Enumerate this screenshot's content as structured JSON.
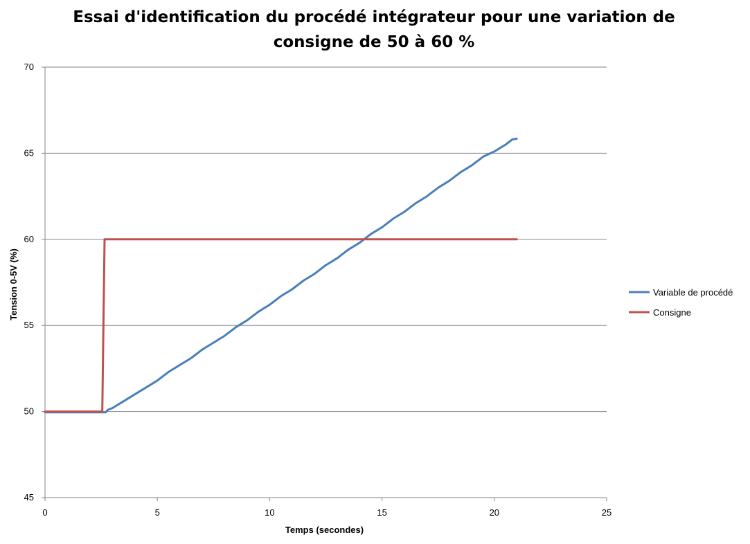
{
  "chart_data": {
    "type": "line",
    "title_lines": [
      "Essai d'identification du procédé intégrateur pour une variation de",
      "consigne de 50 à 60 %"
    ],
    "xlabel": "Temps (secondes)",
    "ylabel": "Tension 0-5V (%)",
    "xlim": [
      0,
      25
    ],
    "ylim": [
      45,
      70
    ],
    "x_ticks": [
      "0",
      "5",
      "10",
      "15",
      "20",
      "25"
    ],
    "y_ticks": [
      "45",
      "50",
      "55",
      "60",
      "65",
      "70"
    ],
    "grid": "horizontal",
    "legend_position": "right",
    "series": [
      {
        "name": "Variable de procédé",
        "color": "#4a7ebb",
        "x": [
          0,
          0.5,
          1.0,
          1.5,
          2.0,
          2.5,
          2.7,
          2.8,
          3.0,
          3.5,
          4.0,
          4.5,
          5.0,
          5.5,
          6.0,
          6.5,
          7.0,
          7.5,
          8.0,
          8.5,
          9.0,
          9.5,
          10.0,
          10.5,
          11.0,
          11.5,
          12.0,
          12.5,
          13.0,
          13.5,
          14.0,
          14.5,
          15.0,
          15.5,
          16.0,
          16.5,
          17.0,
          17.5,
          18.0,
          18.5,
          19.0,
          19.5,
          20.0,
          20.5,
          20.8,
          21.0
        ],
        "y": [
          49.95,
          49.95,
          49.95,
          49.95,
          49.95,
          49.95,
          49.95,
          50.1,
          50.2,
          50.6,
          51.0,
          51.4,
          51.8,
          52.3,
          52.7,
          53.1,
          53.6,
          54.0,
          54.4,
          54.9,
          55.3,
          55.8,
          56.2,
          56.7,
          57.1,
          57.6,
          58.0,
          58.5,
          58.9,
          59.4,
          59.8,
          60.3,
          60.7,
          61.2,
          61.6,
          62.1,
          62.5,
          63.0,
          63.4,
          63.9,
          64.3,
          64.8,
          65.1,
          65.5,
          65.8,
          65.85
        ]
      },
      {
        "name": "Consigne",
        "color": "#c0504d",
        "x": [
          0,
          2.55,
          2.65,
          21.0
        ],
        "y": [
          50,
          50,
          60,
          60
        ]
      }
    ]
  }
}
